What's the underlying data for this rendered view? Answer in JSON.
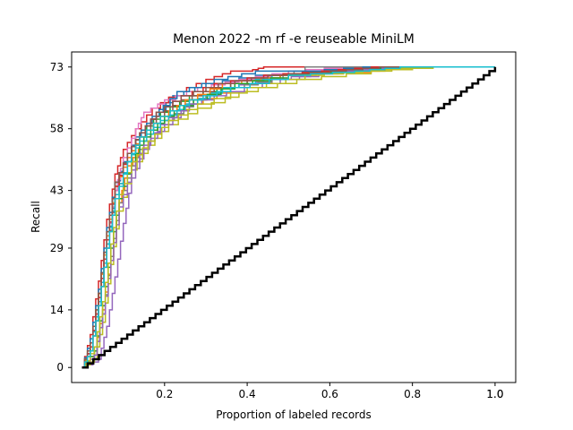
{
  "chart_data": {
    "type": "line",
    "title": "Menon 2022 -m rf -e reuseable MiniLM",
    "xlabel": "Proportion of labeled records",
    "ylabel": "Recall",
    "xlim": [
      -0.025,
      1.05
    ],
    "ylim": [
      -3.65,
      76.65
    ],
    "x_ticks": [
      0.2,
      0.4,
      0.6,
      0.8,
      1.0
    ],
    "x_tick_labels": [
      "0.2",
      "0.4",
      "0.6",
      "0.8",
      "1.0"
    ],
    "extra_x_tick_labels": [
      "1.0"
    ],
    "y_ticks": [
      0,
      14,
      29,
      43,
      58,
      73
    ],
    "y_tick_labels": [
      "0",
      "14",
      "29",
      "43",
      "58",
      "73"
    ],
    "grid": false,
    "legend": "none",
    "total_relevant": 73,
    "series_colors": [
      "#1f77b4",
      "#ff7f0e",
      "#2ca02c",
      "#d62728",
      "#9467bd",
      "#8c564b",
      "#e377c2",
      "#7f7f7f",
      "#bcbd22",
      "#17becf"
    ],
    "series": [
      {
        "color": "#1f77b4",
        "points": [
          [
            0.0,
            0
          ],
          [
            0.02,
            5
          ],
          [
            0.04,
            16
          ],
          [
            0.06,
            30
          ],
          [
            0.08,
            43
          ],
          [
            0.1,
            50
          ],
          [
            0.13,
            56
          ],
          [
            0.17,
            61
          ],
          [
            0.22,
            66
          ],
          [
            0.3,
            69
          ],
          [
            0.42,
            71
          ],
          [
            0.62,
            72
          ],
          [
            0.84,
            73
          ],
          [
            1.0,
            73
          ]
        ]
      },
      {
        "color": "#ff7f0e",
        "points": [
          [
            0.0,
            0
          ],
          [
            0.03,
            4
          ],
          [
            0.05,
            14
          ],
          [
            0.07,
            27
          ],
          [
            0.09,
            40
          ],
          [
            0.11,
            49
          ],
          [
            0.15,
            55
          ],
          [
            0.2,
            60
          ],
          [
            0.26,
            64
          ],
          [
            0.36,
            68
          ],
          [
            0.5,
            71
          ],
          [
            0.7,
            72
          ],
          [
            0.8,
            73
          ],
          [
            1.0,
            73
          ]
        ]
      },
      {
        "color": "#2ca02c",
        "points": [
          [
            0.0,
            0
          ],
          [
            0.02,
            6
          ],
          [
            0.04,
            18
          ],
          [
            0.06,
            33
          ],
          [
            0.08,
            45
          ],
          [
            0.11,
            52
          ],
          [
            0.14,
            57
          ],
          [
            0.19,
            62
          ],
          [
            0.26,
            66
          ],
          [
            0.36,
            69
          ],
          [
            0.48,
            71
          ],
          [
            0.6,
            72
          ],
          [
            0.76,
            73
          ],
          [
            1.0,
            73
          ]
        ]
      },
      {
        "color": "#d62728",
        "points": [
          [
            0.0,
            0
          ],
          [
            0.02,
            8
          ],
          [
            0.04,
            21
          ],
          [
            0.06,
            36
          ],
          [
            0.08,
            47
          ],
          [
            0.1,
            53
          ],
          [
            0.13,
            58
          ],
          [
            0.17,
            63
          ],
          [
            0.23,
            67
          ],
          [
            0.3,
            70
          ],
          [
            0.36,
            72
          ],
          [
            0.4,
            72
          ],
          [
            0.44,
            73
          ],
          [
            1.0,
            73
          ]
        ]
      },
      {
        "color": "#9467bd",
        "points": [
          [
            0.0,
            0
          ],
          [
            0.04,
            2
          ],
          [
            0.06,
            10
          ],
          [
            0.08,
            22
          ],
          [
            0.1,
            35
          ],
          [
            0.12,
            46
          ],
          [
            0.15,
            53
          ],
          [
            0.19,
            59
          ],
          [
            0.25,
            64
          ],
          [
            0.34,
            68
          ],
          [
            0.46,
            70
          ],
          [
            0.6,
            72
          ],
          [
            0.72,
            73
          ],
          [
            1.0,
            73
          ]
        ]
      },
      {
        "color": "#8c564b",
        "points": [
          [
            0.0,
            0
          ],
          [
            0.02,
            4
          ],
          [
            0.04,
            15
          ],
          [
            0.06,
            29
          ],
          [
            0.08,
            42
          ],
          [
            0.11,
            50
          ],
          [
            0.14,
            56
          ],
          [
            0.18,
            61
          ],
          [
            0.24,
            65
          ],
          [
            0.32,
            68
          ],
          [
            0.44,
            71
          ],
          [
            0.58,
            72
          ],
          [
            0.66,
            73
          ],
          [
            1.0,
            73
          ]
        ]
      },
      {
        "color": "#e377c2",
        "points": [
          [
            0.0,
            0
          ],
          [
            0.02,
            5
          ],
          [
            0.04,
            17
          ],
          [
            0.06,
            31
          ],
          [
            0.08,
            43
          ],
          [
            0.1,
            51
          ],
          [
            0.13,
            58
          ],
          [
            0.15,
            62
          ],
          [
            0.2,
            65
          ],
          [
            0.28,
            68
          ],
          [
            0.38,
            70
          ],
          [
            0.5,
            72
          ],
          [
            0.63,
            73
          ],
          [
            1.0,
            73
          ]
        ]
      },
      {
        "color": "#7f7f7f",
        "points": [
          [
            0.0,
            0
          ],
          [
            0.03,
            3
          ],
          [
            0.05,
            13
          ],
          [
            0.07,
            27
          ],
          [
            0.09,
            40
          ],
          [
            0.12,
            49
          ],
          [
            0.15,
            55
          ],
          [
            0.2,
            60
          ],
          [
            0.27,
            65
          ],
          [
            0.36,
            68
          ],
          [
            0.46,
            70
          ],
          [
            0.54,
            73
          ],
          [
            1.0,
            73
          ]
        ]
      },
      {
        "color": "#bcbd22",
        "points": [
          [
            0.0,
            0
          ],
          [
            0.03,
            2
          ],
          [
            0.05,
            11
          ],
          [
            0.07,
            25
          ],
          [
            0.09,
            38
          ],
          [
            0.12,
            48
          ],
          [
            0.16,
            54
          ],
          [
            0.21,
            59
          ],
          [
            0.28,
            63
          ],
          [
            0.38,
            67
          ],
          [
            0.52,
            70
          ],
          [
            0.7,
            72
          ],
          [
            0.85,
            73
          ],
          [
            1.0,
            73
          ]
        ]
      },
      {
        "color": "#17becf",
        "points": [
          [
            0.0,
            0
          ],
          [
            0.02,
            5
          ],
          [
            0.04,
            16
          ],
          [
            0.06,
            30
          ],
          [
            0.08,
            42
          ],
          [
            0.11,
            50
          ],
          [
            0.14,
            55
          ],
          [
            0.19,
            60
          ],
          [
            0.25,
            64
          ],
          [
            0.34,
            68
          ],
          [
            0.46,
            71
          ],
          [
            0.62,
            72
          ],
          [
            0.78,
            73
          ],
          [
            1.0,
            73
          ]
        ]
      },
      {
        "color": "#1f77b4",
        "points": [
          [
            0.0,
            0
          ],
          [
            0.02,
            7
          ],
          [
            0.04,
            19
          ],
          [
            0.06,
            34
          ],
          [
            0.08,
            45
          ],
          [
            0.11,
            52
          ],
          [
            0.14,
            57
          ],
          [
            0.18,
            62
          ],
          [
            0.23,
            67
          ],
          [
            0.32,
            70
          ],
          [
            0.42,
            72
          ],
          [
            0.54,
            72
          ],
          [
            0.68,
            73
          ],
          [
            1.0,
            73
          ]
        ]
      },
      {
        "color": "#ff7f0e",
        "points": [
          [
            0.0,
            0
          ],
          [
            0.02,
            6
          ],
          [
            0.04,
            18
          ],
          [
            0.06,
            32
          ],
          [
            0.08,
            44
          ],
          [
            0.11,
            51
          ],
          [
            0.14,
            56
          ],
          [
            0.19,
            61
          ],
          [
            0.25,
            65
          ],
          [
            0.34,
            69
          ],
          [
            0.48,
            71
          ],
          [
            0.62,
            72
          ],
          [
            0.75,
            73
          ],
          [
            1.0,
            73
          ]
        ]
      },
      {
        "color": "#2ca02c",
        "points": [
          [
            0.0,
            0
          ],
          [
            0.03,
            4
          ],
          [
            0.05,
            15
          ],
          [
            0.07,
            29
          ],
          [
            0.09,
            41
          ],
          [
            0.12,
            50
          ],
          [
            0.15,
            56
          ],
          [
            0.2,
            61
          ],
          [
            0.27,
            65
          ],
          [
            0.37,
            69
          ],
          [
            0.5,
            71
          ],
          [
            0.64,
            72
          ],
          [
            0.74,
            73
          ],
          [
            1.0,
            73
          ]
        ]
      },
      {
        "color": "#d62728",
        "points": [
          [
            0.0,
            0
          ],
          [
            0.02,
            5
          ],
          [
            0.04,
            17
          ],
          [
            0.06,
            31
          ],
          [
            0.08,
            44
          ],
          [
            0.11,
            52
          ],
          [
            0.14,
            57
          ],
          [
            0.18,
            62
          ],
          [
            0.24,
            66
          ],
          [
            0.32,
            69
          ],
          [
            0.44,
            71
          ],
          [
            0.58,
            72
          ],
          [
            0.7,
            73
          ],
          [
            1.0,
            73
          ]
        ]
      },
      {
        "color": "#9467bd",
        "points": [
          [
            0.0,
            0
          ],
          [
            0.03,
            3
          ],
          [
            0.05,
            13
          ],
          [
            0.07,
            26
          ],
          [
            0.09,
            39
          ],
          [
            0.12,
            48
          ],
          [
            0.15,
            54
          ],
          [
            0.2,
            59
          ],
          [
            0.26,
            64
          ],
          [
            0.35,
            67
          ],
          [
            0.48,
            70
          ],
          [
            0.62,
            72
          ],
          [
            0.78,
            73
          ],
          [
            1.0,
            73
          ]
        ]
      },
      {
        "color": "#8c564b",
        "points": [
          [
            0.0,
            0
          ],
          [
            0.02,
            6
          ],
          [
            0.04,
            18
          ],
          [
            0.06,
            33
          ],
          [
            0.08,
            45
          ],
          [
            0.11,
            52
          ],
          [
            0.14,
            57
          ],
          [
            0.18,
            62
          ],
          [
            0.24,
            66
          ],
          [
            0.33,
            69
          ],
          [
            0.45,
            71
          ],
          [
            0.6,
            72
          ],
          [
            0.72,
            73
          ],
          [
            1.0,
            73
          ]
        ]
      },
      {
        "color": "#bcbd22",
        "points": [
          [
            0.0,
            0
          ],
          [
            0.03,
            5
          ],
          [
            0.05,
            16
          ],
          [
            0.07,
            30
          ],
          [
            0.09,
            42
          ],
          [
            0.12,
            50
          ],
          [
            0.16,
            55
          ],
          [
            0.21,
            60
          ],
          [
            0.28,
            64
          ],
          [
            0.4,
            68
          ],
          [
            0.54,
            71
          ],
          [
            0.68,
            72
          ],
          [
            0.8,
            73
          ],
          [
            1.0,
            73
          ]
        ]
      },
      {
        "color": "#17becf",
        "points": [
          [
            0.0,
            0
          ],
          [
            0.02,
            4
          ],
          [
            0.04,
            15
          ],
          [
            0.06,
            29
          ],
          [
            0.08,
            41
          ],
          [
            0.11,
            50
          ],
          [
            0.14,
            56
          ],
          [
            0.19,
            61
          ],
          [
            0.26,
            65
          ],
          [
            0.36,
            68
          ],
          [
            0.5,
            71
          ],
          [
            0.66,
            72
          ],
          [
            0.77,
            73
          ],
          [
            1.0,
            73
          ]
        ]
      }
    ],
    "baseline": {
      "color": "#000000",
      "from": [
        0.0,
        0
      ],
      "to": [
        1.0,
        73
      ],
      "steps": 73
    }
  }
}
